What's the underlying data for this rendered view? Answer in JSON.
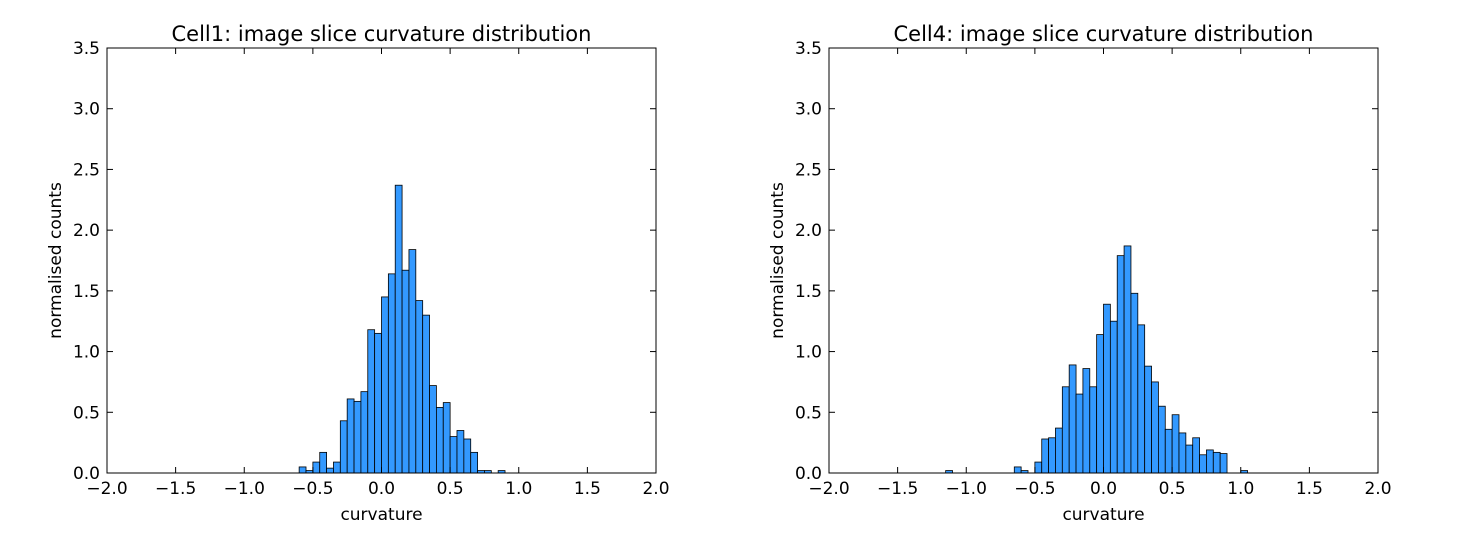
{
  "chart_data": [
    {
      "type": "bar",
      "title": "Cell1: image slice curvature distribution",
      "xlabel": "curvature",
      "ylabel": "normalised counts",
      "xlim": [
        -2.0,
        2.0
      ],
      "ylim": [
        0,
        3.5
      ],
      "xticks": [
        "−2.0",
        "−1.5",
        "−1.0",
        "−0.5",
        "0.0",
        "0.5",
        "1.0",
        "1.5",
        "2.0"
      ],
      "yticks": [
        "0.0",
        "0.5",
        "1.0",
        "1.5",
        "2.0",
        "2.5",
        "3.0",
        "3.5"
      ],
      "bar_color": "#3399ff",
      "bin_width": 0.05,
      "bins": [
        -0.6,
        -0.55,
        -0.5,
        -0.45,
        -0.4,
        -0.35,
        -0.3,
        -0.25,
        -0.2,
        -0.15,
        -0.1,
        -0.05,
        0.0,
        0.05,
        0.1,
        0.15,
        0.2,
        0.25,
        0.3,
        0.35,
        0.4,
        0.45,
        0.5,
        0.55,
        0.6,
        0.65,
        0.7,
        0.75,
        0.8,
        0.85
      ],
      "values": [
        0.05,
        0.02,
        0.09,
        0.17,
        0.04,
        0.09,
        0.43,
        0.61,
        0.59,
        0.67,
        1.18,
        1.15,
        1.45,
        1.64,
        2.37,
        1.67,
        1.84,
        1.42,
        1.3,
        0.72,
        0.54,
        0.58,
        0.3,
        0.35,
        0.28,
        0.17,
        0.02,
        0.02,
        0.0,
        0.02
      ]
    },
    {
      "type": "bar",
      "title": "Cell4: image slice curvature distribution",
      "xlabel": "curvature",
      "ylabel": "normalised counts",
      "xlim": [
        -2.0,
        2.0
      ],
      "ylim": [
        0,
        3.5
      ],
      "xticks": [
        "−2.0",
        "−1.5",
        "−1.0",
        "−0.5",
        "0.0",
        "0.5",
        "1.0",
        "1.5",
        "2.0"
      ],
      "yticks": [
        "0.0",
        "0.5",
        "1.0",
        "1.5",
        "2.0",
        "2.5",
        "3.0",
        "3.5"
      ],
      "bar_color": "#3399ff",
      "bin_width": 0.05,
      "bins": [
        -1.15,
        -0.65,
        -0.6,
        -0.5,
        -0.45,
        -0.4,
        -0.35,
        -0.3,
        -0.25,
        -0.2,
        -0.15,
        -0.1,
        -0.05,
        0.0,
        0.05,
        0.1,
        0.15,
        0.2,
        0.25,
        0.3,
        0.35,
        0.4,
        0.45,
        0.5,
        0.55,
        0.6,
        0.65,
        0.7,
        0.75,
        0.8,
        0.85,
        1.0
      ],
      "values": [
        0.02,
        0.05,
        0.02,
        0.09,
        0.28,
        0.29,
        0.37,
        0.71,
        0.89,
        0.65,
        0.86,
        0.71,
        1.14,
        1.39,
        1.25,
        1.79,
        1.87,
        1.48,
        1.22,
        0.88,
        0.75,
        0.55,
        0.36,
        0.48,
        0.33,
        0.23,
        0.29,
        0.15,
        0.19,
        0.17,
        0.16,
        0.02
      ]
    }
  ]
}
